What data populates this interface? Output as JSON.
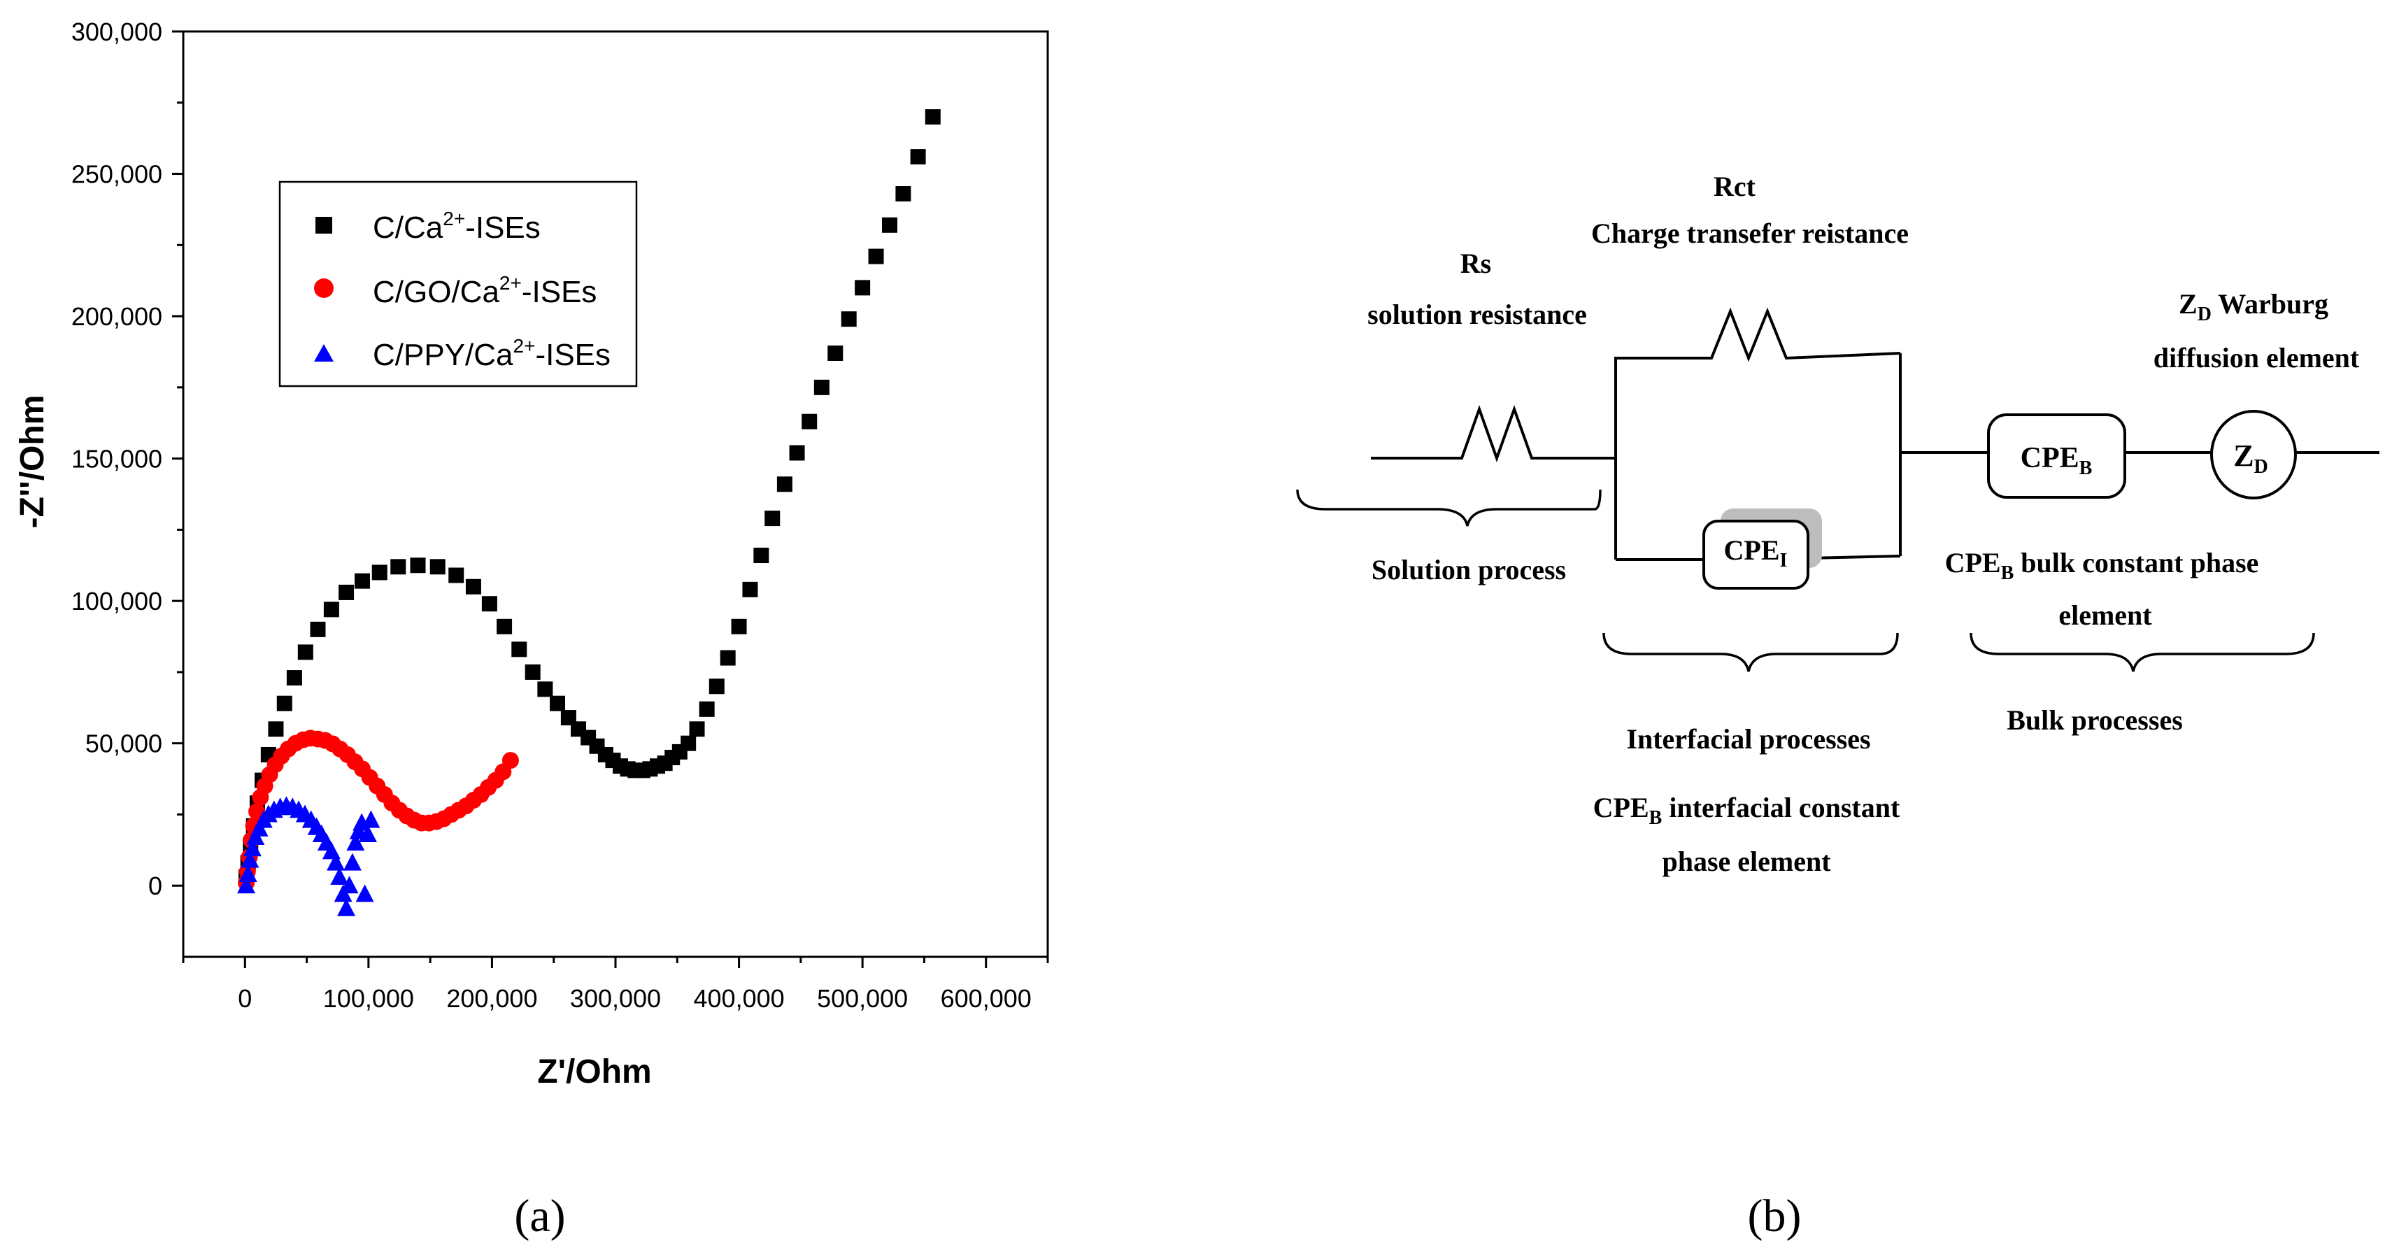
{
  "panel_labels": {
    "a": "(a)",
    "b": "(b)"
  },
  "chart_data": {
    "type": "scatter",
    "title": "",
    "xlabel": "Z'/Ohm",
    "ylabel": "-Z''/Ohm",
    "xlim": [
      -50000,
      650000
    ],
    "ylim": [
      -25000,
      300000
    ],
    "xticks": [
      0,
      100000,
      200000,
      300000,
      400000,
      500000,
      600000
    ],
    "xtick_labels": [
      "0",
      "100,000",
      "200,000",
      "300,000",
      "400,000",
      "500,000",
      "600,000"
    ],
    "yticks": [
      0,
      50000,
      100000,
      150000,
      200000,
      250000,
      300000
    ],
    "ytick_labels": [
      "0",
      "50,000",
      "100,000",
      "150,000",
      "200,000",
      "250,000",
      "300,000"
    ],
    "grid": false,
    "legend_position": "upper-left",
    "series": [
      {
        "name": "C/Ca2+-ISEs",
        "label_pre": "C/Ca",
        "label_sup": "2+",
        "label_post": "-ISEs",
        "color": "#000000",
        "marker": "square",
        "x": [
          1000,
          2500,
          4500,
          7000,
          10000,
          14000,
          19000,
          25000,
          32000,
          40000,
          49000,
          59000,
          70000,
          82000,
          95000,
          109000,
          124000,
          140000,
          156000,
          171000,
          185000,
          198000,
          210000,
          222000,
          233000,
          243000,
          253000,
          262000,
          270000,
          278000,
          285000,
          292000,
          298000,
          304000,
          310000,
          316000,
          322000,
          328000,
          334000,
          340000,
          346000,
          352000,
          359000,
          366000,
          374000,
          382000,
          391000,
          400000,
          409000,
          418000,
          427000,
          437000,
          447000,
          457000,
          467000,
          478000,
          489000,
          500000,
          511000,
          522000,
          533000,
          545000,
          557000
        ],
        "y": [
          3000,
          8000,
          14000,
          21000,
          29000,
          37000,
          46000,
          55000,
          64000,
          73000,
          82000,
          90000,
          97000,
          103000,
          107000,
          110000,
          112000,
          112500,
          112000,
          109000,
          105000,
          99000,
          91000,
          83000,
          75000,
          69000,
          64000,
          59000,
          55000,
          52000,
          49000,
          46000,
          44000,
          42000,
          41000,
          40500,
          40500,
          41000,
          42000,
          43000,
          45000,
          47000,
          50000,
          55000,
          62000,
          70000,
          80000,
          91000,
          104000,
          116000,
          129000,
          141000,
          152000,
          163000,
          175000,
          187000,
          199000,
          210000,
          221000,
          232000,
          243000,
          256000,
          270000
        ]
      },
      {
        "name": "C/GO/Ca2+-ISEs",
        "label_pre": "C/GO/Ca",
        "label_sup": "2+",
        "label_post": "-ISEs",
        "color": "#ff0000",
        "marker": "circle",
        "x": [
          1000,
          2000,
          3500,
          5000,
          7000,
          9500,
          12500,
          16000,
          20000,
          24500,
          29500,
          35000,
          41000,
          47000,
          53000,
          59000,
          65000,
          71000,
          77000,
          83000,
          89000,
          95000,
          101000,
          107000,
          113000,
          119000,
          125000,
          131000,
          137000,
          143000,
          149000,
          155000,
          161000,
          167000,
          173000,
          179000,
          185000,
          191000,
          197000,
          203000,
          209000,
          215000
        ],
        "y": [
          1000,
          5000,
          10000,
          16000,
          21000,
          26000,
          31000,
          35000,
          39000,
          42500,
          45500,
          48000,
          50000,
          51200,
          51800,
          51500,
          51000,
          49800,
          48000,
          46000,
          43500,
          41000,
          38000,
          35000,
          32000,
          29000,
          26500,
          24500,
          23000,
          22000,
          22000,
          22500,
          23500,
          25000,
          26500,
          28000,
          30000,
          32000,
          34500,
          37000,
          40000,
          44000
        ]
      },
      {
        "name": "C/PPY/Ca2+-ISEs",
        "label_pre": "C/PPY/Ca",
        "label_sup": "2+",
        "label_post": "-ISEs",
        "color": "#0000ff",
        "marker": "triangle",
        "x": [
          1000,
          2500,
          4000,
          6000,
          8500,
          11500,
          15000,
          19000,
          23500,
          28500,
          33500,
          38500,
          43500,
          48500,
          53500,
          58000,
          62000,
          66000,
          70000,
          73500,
          76500,
          79500,
          82000,
          84500,
          87000,
          89500,
          92000,
          94500,
          97000,
          99500,
          102000
        ],
        "y": [
          0,
          4000,
          9000,
          13000,
          17000,
          20000,
          23000,
          25000,
          26500,
          27500,
          28000,
          27500,
          26500,
          25000,
          23000,
          20500,
          18000,
          15000,
          12000,
          8000,
          3000,
          -3000,
          -8000,
          0,
          8000,
          15000,
          19000,
          22000,
          -3000,
          18000,
          23000
        ]
      }
    ]
  },
  "circuit": {
    "rs_title": "Rs",
    "rs_subtitle": "solution resistance",
    "rct_title": "Rct",
    "rct_subtitle": "Charge transefer reistance",
    "zd_label_main": "Z",
    "zd_label_sub": "D",
    "zd_title_rest": " Warburg",
    "zd_subtitle": "diffusion element",
    "cpe_i_main": "CPE",
    "cpe_i_sub": "I",
    "cpe_b_main": "CPE",
    "cpe_b_sub": "B",
    "zd_box_main": "Z",
    "zd_box_sub": "D",
    "solution_process": "Solution process",
    "cpeb_desc_main": "CPE",
    "cpeb_desc_sub": "B",
    "cpeb_desc_rest": " bulk constant phase",
    "cpeb_desc_line2": "element",
    "interfacial_processes": "Interfacial processes",
    "cpeb_interfacial_main": "CPE",
    "cpeb_interfacial_sub": "B",
    "cpeb_interfacial_rest": " interfacial constant",
    "cpeb_interfacial_line2": "phase element",
    "bulk_processes": "Bulk processes"
  }
}
